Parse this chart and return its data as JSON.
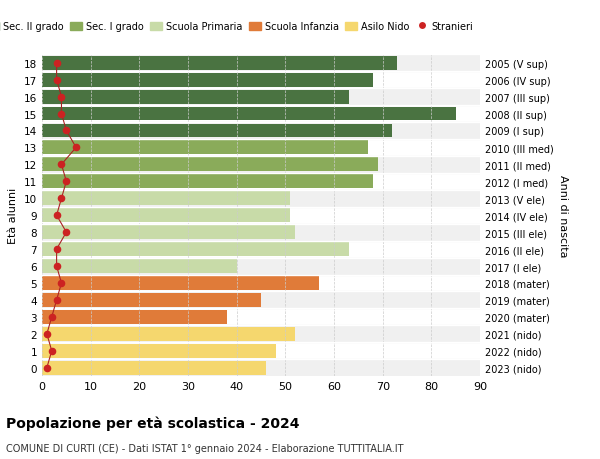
{
  "ages": [
    0,
    1,
    2,
    3,
    4,
    5,
    6,
    7,
    8,
    9,
    10,
    11,
    12,
    13,
    14,
    15,
    16,
    17,
    18
  ],
  "right_labels": [
    "2023 (nido)",
    "2022 (nido)",
    "2021 (nido)",
    "2020 (mater)",
    "2019 (mater)",
    "2018 (mater)",
    "2017 (I ele)",
    "2016 (II ele)",
    "2015 (III ele)",
    "2014 (IV ele)",
    "2013 (V ele)",
    "2012 (I med)",
    "2011 (II med)",
    "2010 (III med)",
    "2009 (I sup)",
    "2008 (II sup)",
    "2007 (III sup)",
    "2006 (IV sup)",
    "2005 (V sup)"
  ],
  "bar_values": [
    46,
    48,
    52,
    38,
    45,
    57,
    40,
    63,
    52,
    51,
    51,
    68,
    69,
    67,
    72,
    85,
    63,
    68,
    73
  ],
  "stranieri": [
    1,
    2,
    1,
    2,
    3,
    4,
    3,
    3,
    5,
    3,
    4,
    5,
    4,
    7,
    5,
    4,
    4,
    3,
    3
  ],
  "bar_colors": [
    "#f5d76e",
    "#f5d76e",
    "#f5d76e",
    "#e07b39",
    "#e07b39",
    "#e07b39",
    "#c8dba8",
    "#c8dba8",
    "#c8dba8",
    "#c8dba8",
    "#c8dba8",
    "#8aab5a",
    "#8aab5a",
    "#8aab5a",
    "#4a7341",
    "#4a7341",
    "#4a7341",
    "#4a7341",
    "#4a7341"
  ],
  "legend_items": [
    {
      "label": "Sec. II grado",
      "color": "#4a7341"
    },
    {
      "label": "Sec. I grado",
      "color": "#8aab5a"
    },
    {
      "label": "Scuola Primaria",
      "color": "#c8dba8"
    },
    {
      "label": "Scuola Infanzia",
      "color": "#e07b39"
    },
    {
      "label": "Asilo Nido",
      "color": "#f5d76e"
    },
    {
      "label": "Stranieri",
      "color": "#cc2222"
    }
  ],
  "ylabel": "Età alunni",
  "right_ylabel": "Anni di nascita",
  "title": "Popolazione per età scolastica - 2024",
  "subtitle": "COMUNE DI CURTI (CE) - Dati ISTAT 1° gennaio 2024 - Elaborazione TUTTITALIA.IT",
  "xlim": [
    0,
    90
  ],
  "background_color": "#ffffff",
  "row_alt_color": "#f0f0f0",
  "grid_color": "#cccccc",
  "stranieri_color": "#cc2222",
  "stranieri_line_color": "#aa2222"
}
